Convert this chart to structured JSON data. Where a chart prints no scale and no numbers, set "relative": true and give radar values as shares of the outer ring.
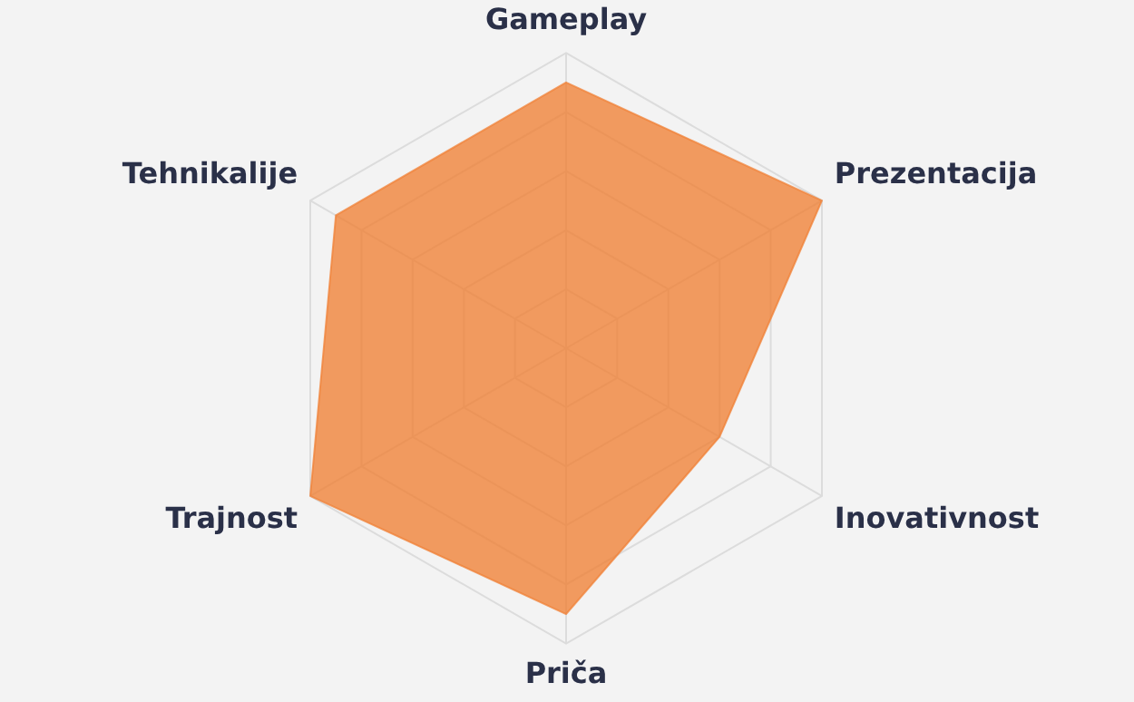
{
  "chart_data": {
    "type": "radar",
    "relative": true,
    "grid": true,
    "legend": false,
    "categories": [
      "Gameplay",
      "Prezentacija",
      "Inovativnost",
      "Priča",
      "Trajnost",
      "Tehnikalije"
    ],
    "series": [
      {
        "color": "#f08035",
        "values": [
          0.9,
          1.0,
          0.6,
          0.9,
          1.0,
          0.9
        ]
      }
    ]
  }
}
